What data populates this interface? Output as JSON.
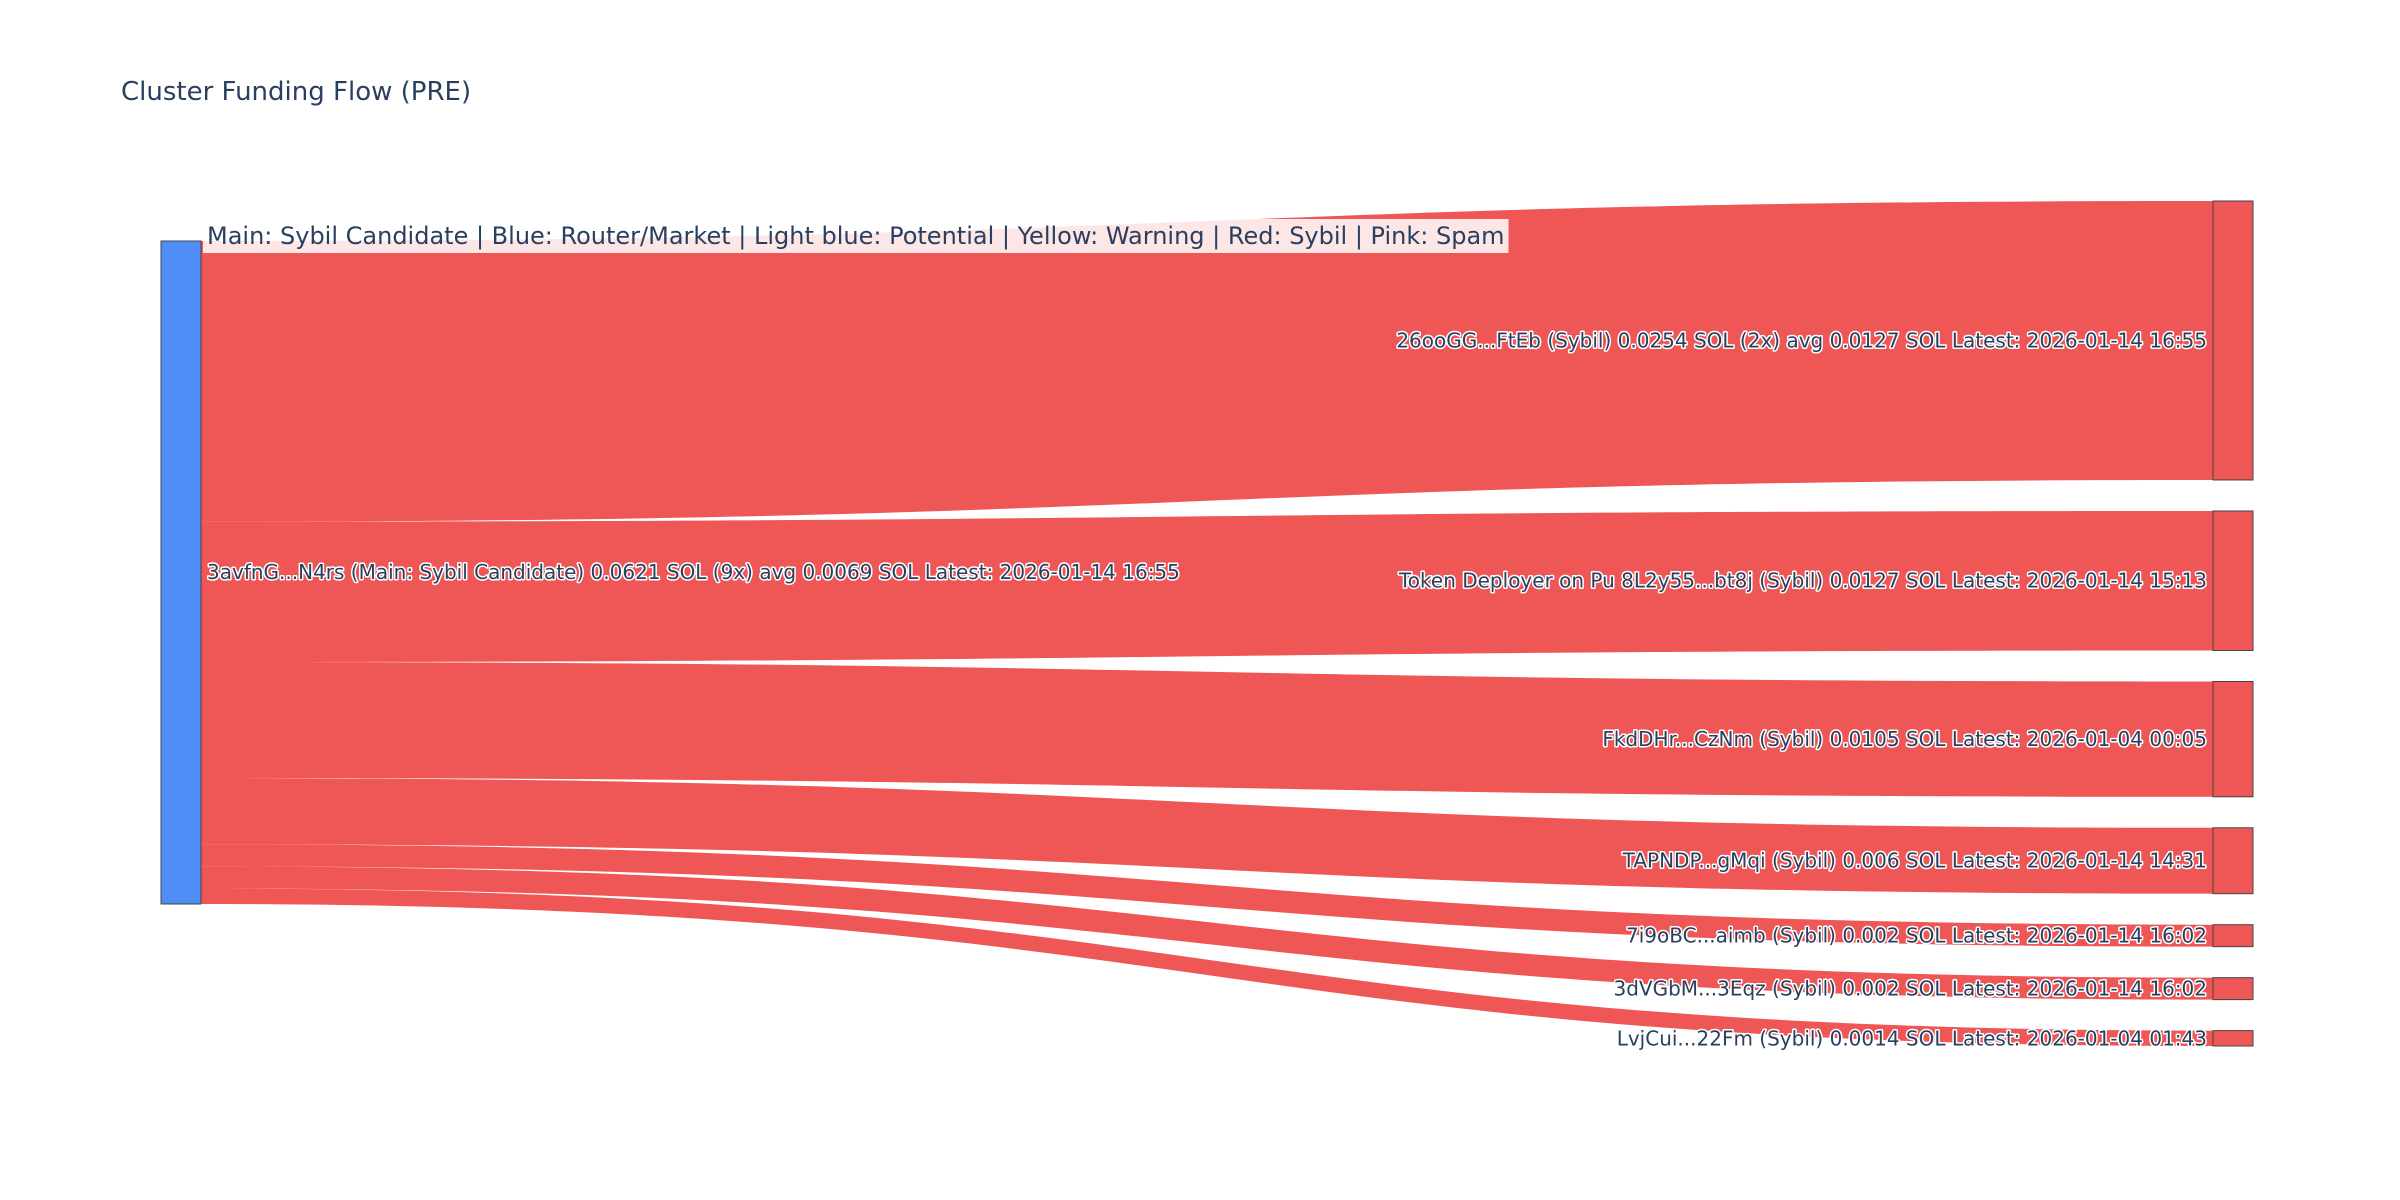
{
  "chart_data": {
    "type": "sankey",
    "title": "Cluster Funding Flow (PRE)",
    "legend_note": "Main: Sybil Candidate  |  Blue: Router/Market | Light blue: Potential | Yellow: Warning | Red: Sybil | Pink: Spam",
    "source": {
      "label": "3avfnG...N4rs (Main: Sybil Candidate) 0.0621 SOL (9x) avg 0.0069 SOL Latest: 2026-01-14 16:55",
      "color": "#4f8ef7",
      "value": 0.0621
    },
    "targets": [
      {
        "label": "26ooGG...FtEb (Sybil) 0.0254 SOL (2x) avg 0.0127 SOL Latest: 2026-01-14 16:55",
        "value": 0.0254,
        "color": "#ef5656"
      },
      {
        "label": "Token Deployer on Pu 8L2y55...bt8j (Sybil) 0.0127 SOL Latest: 2026-01-14 15:13",
        "value": 0.0127,
        "color": "#ef5656"
      },
      {
        "label": "FkdDHr...CzNm (Sybil) 0.0105 SOL Latest: 2026-01-04 00:05",
        "value": 0.0105,
        "color": "#ef5656"
      },
      {
        "label": "TAPNDP...gMqi (Sybil) 0.006 SOL Latest: 2026-01-14 14:31",
        "value": 0.006,
        "color": "#ef5656"
      },
      {
        "label": "7i9oBC...aimb (Sybil) 0.002 SOL Latest: 2026-01-14 16:02",
        "value": 0.002,
        "color": "#ef5656"
      },
      {
        "label": "3dVGbM...3Eqz (Sybil) 0.002 SOL Latest: 2026-01-14 16:02",
        "value": 0.002,
        "color": "#ef5656"
      },
      {
        "label": "LvjCui...22Fm (Sybil) 0.0014 SOL Latest: 2026-01-04 01:43",
        "value": 0.0014,
        "color": "#ef5656"
      }
    ],
    "link_color": "#ef5656"
  }
}
